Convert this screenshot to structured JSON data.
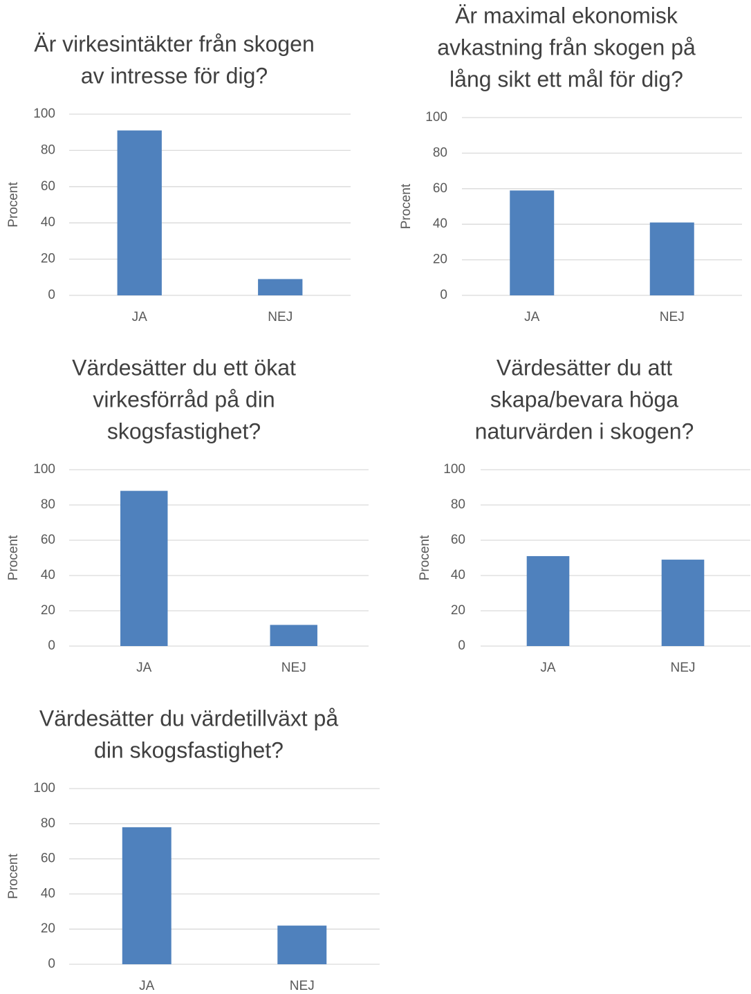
{
  "chart_data": [
    {
      "type": "bar",
      "title": [
        "Är virkesintäkter från skogen",
        "av intresse för dig?"
      ],
      "y_label": "Procent",
      "categories": [
        "JA",
        "NEJ"
      ],
      "values": [
        91,
        9
      ],
      "color": "#4f81bd",
      "ylim": [
        0,
        100
      ],
      "yticks": [
        0,
        20,
        40,
        60,
        80,
        100
      ],
      "grid": true
    },
    {
      "type": "bar",
      "title": [
        "Är maximal ekonomisk",
        "avkastning från skogen på",
        "lång sikt ett mål för dig?"
      ],
      "y_label": "Procent",
      "categories": [
        "JA",
        "NEJ"
      ],
      "values": [
        59,
        41
      ],
      "color": "#4f81bd",
      "ylim": [
        0,
        100
      ],
      "yticks": [
        0,
        20,
        40,
        60,
        80,
        100
      ],
      "grid": true
    },
    {
      "type": "bar",
      "title": [
        "Värdesätter du ett ökat",
        "virkesförråd på din",
        "skogsfastighet?"
      ],
      "y_label": "Procent",
      "categories": [
        "JA",
        "NEJ"
      ],
      "values": [
        88,
        12
      ],
      "color": "#4f81bd",
      "ylim": [
        0,
        100
      ],
      "yticks": [
        0,
        20,
        40,
        60,
        80,
        100
      ],
      "grid": true
    },
    {
      "type": "bar",
      "title": [
        "Värdesätter du att",
        "skapa/bevara höga",
        "naturvärden i skogen?"
      ],
      "y_label": "Procent",
      "categories": [
        "JA",
        "NEJ"
      ],
      "values": [
        51,
        49
      ],
      "color": "#4f81bd",
      "ylim": [
        0,
        100
      ],
      "yticks": [
        0,
        20,
        40,
        60,
        80,
        100
      ],
      "grid": true
    },
    {
      "type": "bar",
      "title": [
        "Värdesätter du värdetillväxt på",
        "din skogsfastighet?"
      ],
      "y_label": "Procent",
      "categories": [
        "JA",
        "NEJ"
      ],
      "values": [
        78,
        22
      ],
      "color": "#4f81bd",
      "ylim": [
        0,
        100
      ],
      "yticks": [
        0,
        20,
        40,
        60,
        80,
        100
      ],
      "grid": true
    }
  ]
}
